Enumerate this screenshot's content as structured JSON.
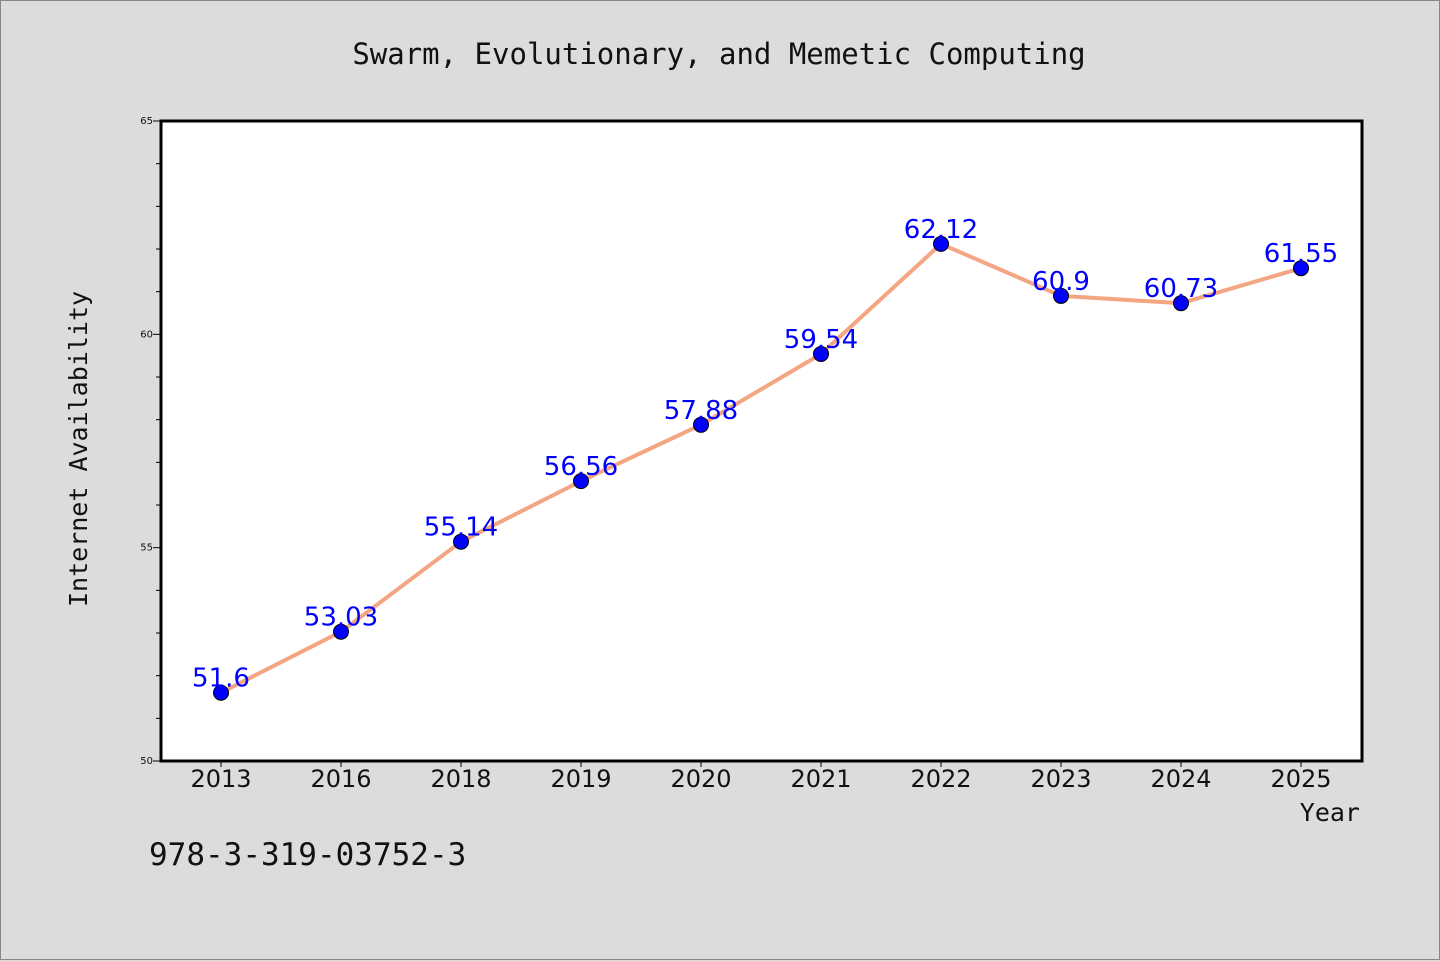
{
  "colors": {
    "background": "#dcdcdc",
    "plot_background": "#ffffff",
    "line": "#f4a582",
    "marker": "#0000ff",
    "data_label": "#0000ff",
    "text": "#111111"
  },
  "footer_note": "978-3-319-03752-3",
  "chart_data": {
    "type": "line",
    "title": "Swarm, Evolutionary, and Memetic Computing",
    "xlabel": "Year",
    "ylabel": "Internet Availability",
    "categories": [
      "2013",
      "2016",
      "2018",
      "2019",
      "2020",
      "2021",
      "2022",
      "2023",
      "2024",
      "2025"
    ],
    "series": [
      {
        "values": [
          51.6,
          53.03,
          55.14,
          56.56,
          57.88,
          59.54,
          62.12,
          60.9,
          60.73,
          61.55
        ],
        "labels": [
          "51.6",
          "53.03",
          "55.14",
          "56.56",
          "57.88",
          "59.54",
          "62.12",
          "60.9",
          "60.73",
          "61.55"
        ]
      }
    ],
    "ylim": [
      50,
      65
    ],
    "yticks": [
      50,
      55,
      60,
      65
    ],
    "yticks_labels": [
      "50",
      "55",
      "60",
      "65"
    ],
    "minor_ytick_step": 1,
    "grid": false,
    "legend": "none"
  }
}
